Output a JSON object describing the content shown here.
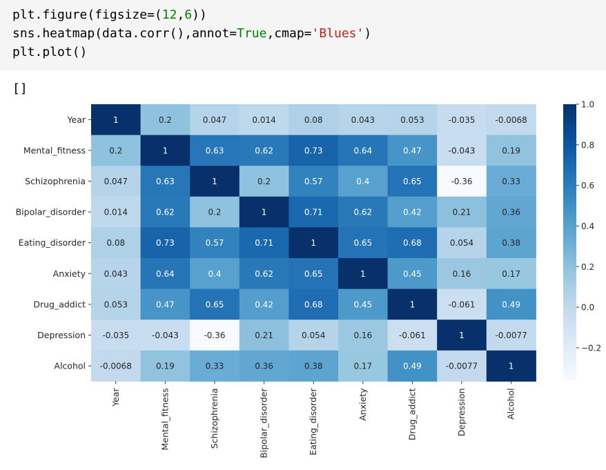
{
  "code": {
    "line1_a": "plt.figure(figsize=(",
    "line1_b": "12",
    "line1_c": ",",
    "line1_d": "6",
    "line1_e": "))",
    "line2_a": "sns.heatmap(data.corr(),annot=",
    "line2_b": "True",
    "line2_c": ",cmap=",
    "line2_d": "'Blues'",
    "line2_e": ")",
    "line3": "plt.plot()"
  },
  "output": "[]",
  "chart_data": {
    "type": "heatmap",
    "title": "",
    "xlabel": "",
    "ylabel": "",
    "row_labels": [
      "Year",
      "Mental_fitness",
      "Schizophrenia",
      "Bipolar_disorder",
      "Eating_disorder",
      "Anxiety",
      "Drug_addict",
      "Depression",
      "Alcohol"
    ],
    "col_labels": [
      "Year",
      "Mental_fitness",
      "Schizophrenia",
      "Bipolar_disorder",
      "Eating_disorder",
      "Anxiety",
      "Drug_addict",
      "Depression",
      "Alcohol"
    ],
    "values": [
      [
        1,
        0.2,
        0.047,
        0.014,
        0.08,
        0.043,
        0.053,
        -0.035,
        -0.0068
      ],
      [
        0.2,
        1,
        0.63,
        0.62,
        0.73,
        0.64,
        0.47,
        -0.043,
        0.19
      ],
      [
        0.047,
        0.63,
        1,
        0.2,
        0.57,
        0.4,
        0.65,
        -0.36,
        0.33
      ],
      [
        0.014,
        0.62,
        0.2,
        1,
        0.71,
        0.62,
        0.42,
        0.21,
        0.36
      ],
      [
        0.08,
        0.73,
        0.57,
        0.71,
        1,
        0.65,
        0.68,
        0.054,
        0.38
      ],
      [
        0.043,
        0.64,
        0.4,
        0.62,
        0.65,
        1,
        0.45,
        0.16,
        0.17
      ],
      [
        0.053,
        0.47,
        0.65,
        0.42,
        0.68,
        0.45,
        1,
        -0.061,
        0.49
      ],
      [
        -0.035,
        -0.043,
        -0.36,
        0.21,
        0.054,
        0.16,
        -0.061,
        1,
        -0.0077
      ],
      [
        -0.0068,
        0.19,
        0.33,
        0.36,
        0.38,
        0.17,
        0.49,
        -0.0077,
        1
      ]
    ],
    "annotations": [
      [
        "1",
        "0.2",
        "0.047",
        "0.014",
        "0.08",
        "0.043",
        "0.053",
        "-0.035",
        "-0.0068"
      ],
      [
        "0.2",
        "1",
        "0.63",
        "0.62",
        "0.73",
        "0.64",
        "0.47",
        "-0.043",
        "0.19"
      ],
      [
        "0.047",
        "0.63",
        "1",
        "0.2",
        "0.57",
        "0.4",
        "0.65",
        "-0.36",
        "0.33"
      ],
      [
        "0.014",
        "0.62",
        "0.2",
        "1",
        "0.71",
        "0.62",
        "0.42",
        "0.21",
        "0.36"
      ],
      [
        "0.08",
        "0.73",
        "0.57",
        "0.71",
        "1",
        "0.65",
        "0.68",
        "0.054",
        "0.38"
      ],
      [
        "0.043",
        "0.64",
        "0.4",
        "0.62",
        "0.65",
        "1",
        "0.45",
        "0.16",
        "0.17"
      ],
      [
        "0.053",
        "0.47",
        "0.65",
        "0.42",
        "0.68",
        "0.45",
        "1",
        "-0.061",
        "0.49"
      ],
      [
        "-0.035",
        "-0.043",
        "-0.36",
        "0.21",
        "0.054",
        "0.16",
        "-0.061",
        "1",
        "-0.0077"
      ],
      [
        "-0.0068",
        "0.19",
        "0.33",
        "0.36",
        "0.38",
        "0.17",
        "0.49",
        "-0.0077",
        "1"
      ]
    ],
    "colormap": "Blues",
    "vmin": -0.36,
    "vmax": 1.0,
    "colorbar_ticks": [
      1.0,
      0.8,
      0.6,
      0.4,
      0.2,
      0.0,
      -0.2
    ],
    "colorbar_tick_labels": [
      "1.0",
      "0.8",
      "0.6",
      "0.4",
      "0.2",
      "0.0",
      "−0.2"
    ]
  }
}
